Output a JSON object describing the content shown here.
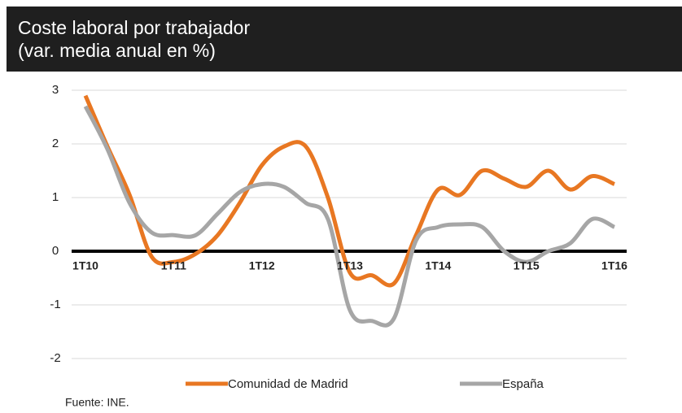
{
  "chart_data": {
    "type": "line",
    "title": "Coste laboral por trabajador",
    "subtitle": "(var. media anual en %)",
    "categories": [
      "1T10",
      null,
      null,
      null,
      "1T11",
      null,
      null,
      null,
      "1T12",
      null,
      null,
      null,
      "1T13",
      null,
      null,
      null,
      "1T14",
      null,
      null,
      null,
      "1T15",
      null,
      null,
      null,
      "1T16"
    ],
    "series": [
      {
        "name": "Comunidad de Madrid",
        "color": "#e87722",
        "values": [
          2.9,
          1.95,
          1.05,
          -0.1,
          -0.2,
          -0.05,
          0.3,
          0.9,
          1.6,
          1.95,
          1.95,
          1.0,
          -0.4,
          -0.45,
          -0.6,
          0.3,
          1.15,
          1.05,
          1.5,
          1.35,
          1.2,
          1.5,
          1.15,
          1.4,
          1.25
        ]
      },
      {
        "name": "España",
        "color": "#a6a6a6",
        "values": [
          2.7,
          1.9,
          0.9,
          0.35,
          0.3,
          0.3,
          0.7,
          1.1,
          1.25,
          1.2,
          0.9,
          0.6,
          -1.1,
          -1.3,
          -1.25,
          0.2,
          0.45,
          0.5,
          0.45,
          0.0,
          -0.2,
          0.0,
          0.15,
          0.6,
          0.45
        ]
      }
    ],
    "ylim": [
      -2.5,
      3.2
    ],
    "yticks": [
      -2,
      -1,
      0,
      1,
      2,
      3
    ],
    "grid": true,
    "source": "Fuente: INE."
  }
}
